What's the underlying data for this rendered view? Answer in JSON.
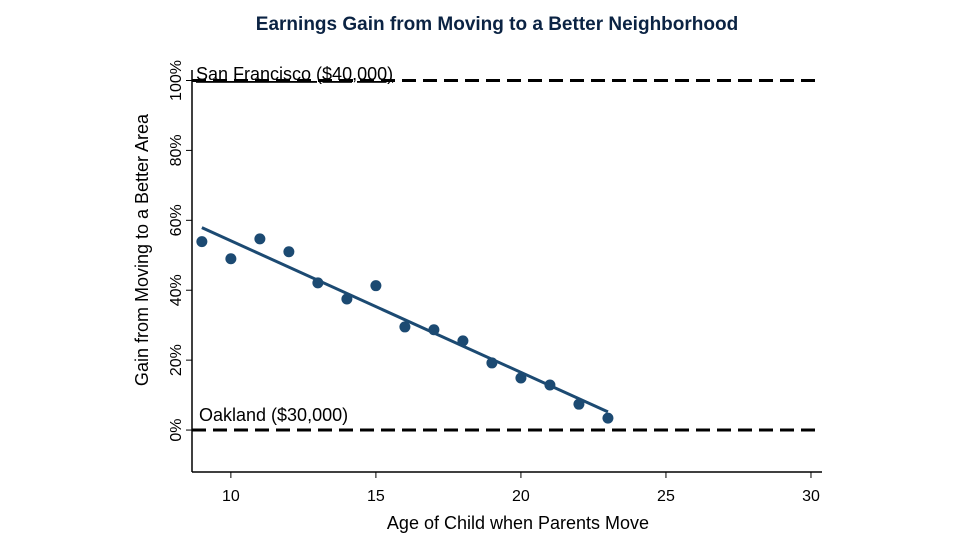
{
  "chart_data": {
    "type": "scatter",
    "title": "Earnings Gain from Moving to a Better Neighborhood",
    "xlabel": "Age of Child when Parents Move",
    "ylabel": "Gain from Moving to a Better Area",
    "xlim": [
      8.66,
      30.38
    ],
    "ylim": [
      -12,
      103
    ],
    "xticks": [
      10,
      15,
      20,
      25,
      30
    ],
    "xtick_labels": [
      "10",
      "15",
      "20",
      "25",
      "30"
    ],
    "yticks": [
      0,
      20,
      40,
      60,
      80,
      100
    ],
    "ytick_labels": [
      "0%",
      "20%",
      "40%",
      "60%",
      "80%",
      "100%"
    ],
    "grid": false,
    "points": {
      "x": [
        9,
        10,
        11,
        12,
        13,
        14,
        15,
        16,
        17,
        18,
        19,
        20,
        21,
        22,
        23
      ],
      "y": [
        53.9,
        49.0,
        54.7,
        51.0,
        42.1,
        37.5,
        41.3,
        29.5,
        28.7,
        25.5,
        19.2,
        14.9,
        12.9,
        7.4,
        3.4
      ]
    },
    "fit_line": {
      "x": [
        9,
        23
      ],
      "y": [
        57.9,
        5.2
      ]
    },
    "reference_lines": [
      {
        "y": 100,
        "label": "San Francisco ($40,000)",
        "style": "dashed"
      },
      {
        "y": 0,
        "label": "Oakland ($30,000)",
        "style": "dashed"
      }
    ],
    "colors": {
      "points": "#1c4a72",
      "fit": "#1c4a72",
      "reference": "#000000",
      "title": "#0b2343"
    }
  }
}
